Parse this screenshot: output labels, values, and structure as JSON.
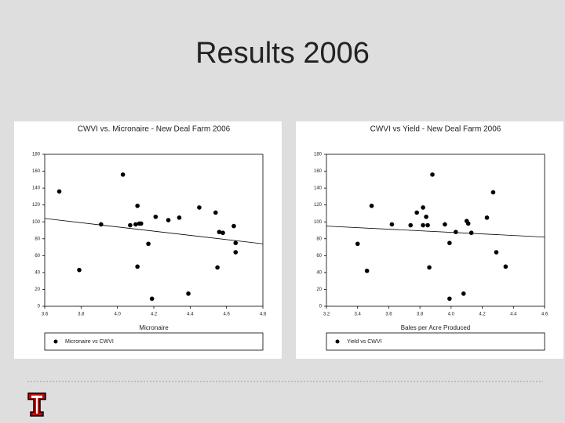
{
  "title": "Results 2006",
  "chart_data": [
    {
      "type": "scatter",
      "title": "CWVI vs. Micronaire - New Deal Farm 2006",
      "x_label": "Micronaire",
      "xlim": [
        3.6,
        4.8
      ],
      "xticks": [
        3.6,
        3.8,
        {
          "value": 4,
          "label": "4.0"
        },
        4.2,
        4.4,
        4.6,
        4.8
      ],
      "ylim": [
        0,
        180
      ],
      "yticks": [
        0,
        20,
        40,
        60,
        80,
        100,
        120,
        140,
        160,
        180
      ],
      "series": [
        {
          "name": "Micronaire vs CWVI",
          "color": "#000000",
          "x": [
            3.68,
            3.79,
            3.91,
            4.03,
            4.07,
            4.1,
            4.11,
            4.12,
            4.13,
            4.11,
            4.17,
            4.19,
            4.21,
            4.28,
            4.34,
            4.39,
            4.45,
            4.54,
            4.55,
            4.56,
            4.58,
            4.64,
            4.65,
            4.65
          ],
          "values": [
            136,
            43,
            97,
            156,
            96,
            97,
            119,
            98,
            98,
            47,
            74,
            9,
            106,
            102,
            105,
            15,
            117,
            111,
            46,
            88,
            87,
            95,
            75,
            64
          ]
        }
      ],
      "trendline": {
        "color": "#000000",
        "x": [
          3.6,
          4.8
        ],
        "values": [
          104,
          74
        ]
      }
    },
    {
      "type": "scatter",
      "title": "CWVI vs Yield - New Deal Farm 2006",
      "x_label": "Bales per Acre Produced",
      "xlim": [
        3.2,
        4.6
      ],
      "xticks": [
        3.2,
        3.4,
        3.6,
        3.8,
        {
          "value": 4,
          "label": "4.0"
        },
        4.2,
        4.4,
        4.6
      ],
      "ylim": [
        0,
        180
      ],
      "yticks": [
        0,
        20,
        40,
        60,
        80,
        100,
        120,
        140,
        160,
        180
      ],
      "series": [
        {
          "name": "Yield vs CWVI",
          "color": "#000000",
          "x": [
            3.4,
            3.46,
            3.49,
            3.62,
            3.74,
            3.78,
            3.82,
            3.82,
            3.84,
            3.85,
            3.88,
            3.86,
            3.96,
            3.99,
            4.03,
            3.99,
            4.08,
            4.1,
            4.11,
            4.13,
            4.23,
            4.27,
            4.29,
            4.35
          ],
          "values": [
            74,
            42,
            119,
            97,
            96,
            111,
            117,
            96,
            106,
            96,
            156,
            46,
            97,
            75,
            88,
            9,
            15,
            101,
            98,
            87,
            105,
            135,
            64,
            47
          ]
        }
      ],
      "trendline": {
        "color": "#000000",
        "x": [
          3.2,
          4.6
        ],
        "values": [
          95,
          82
        ]
      }
    }
  ]
}
